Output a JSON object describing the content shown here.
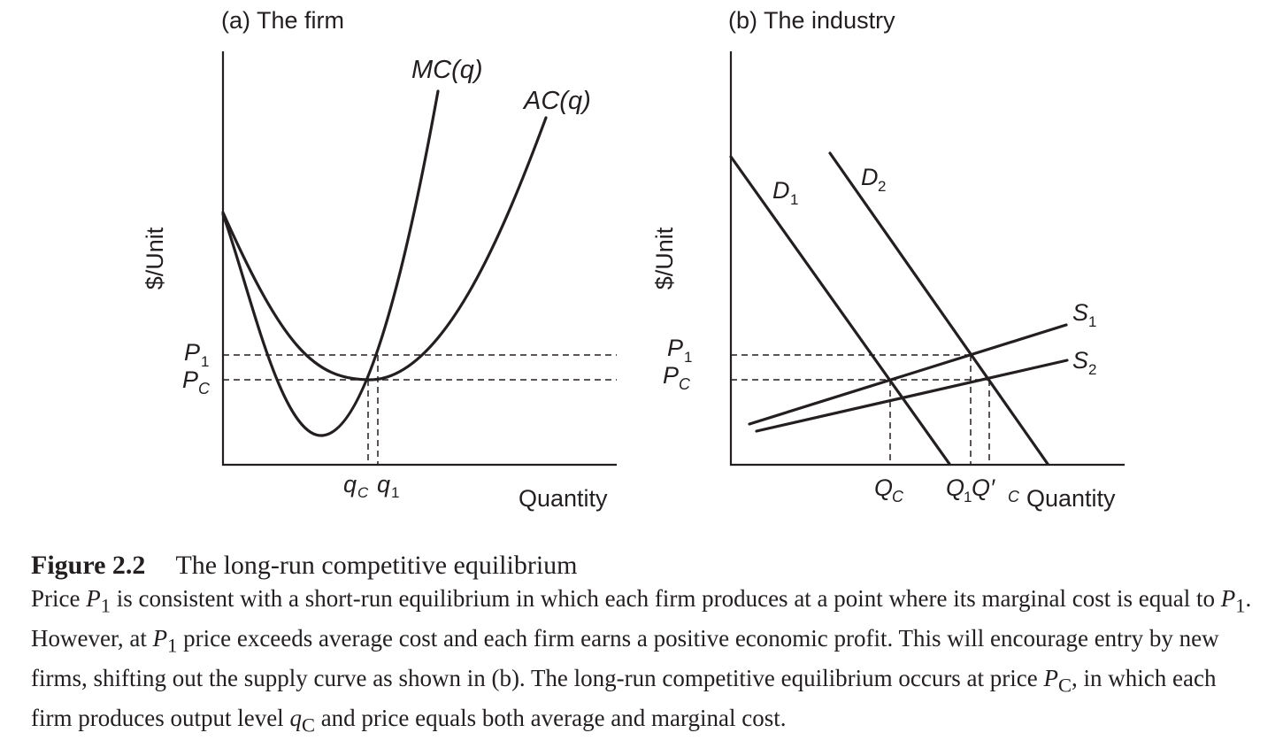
{
  "panel_a": {
    "title": "(a) The firm",
    "y_axis_label": "$/Unit",
    "x_axis_label": "Quantity",
    "mc_label": "MC(q)",
    "ac_label": "AC(q)",
    "p1_label": "P",
    "p1_sub": "1",
    "pc_label": "P",
    "pc_sub": "C",
    "qc_label": "q",
    "qc_sub": "C",
    "q1_label": "q",
    "q1_sub": "1"
  },
  "panel_b": {
    "title": "(b) The industry",
    "y_axis_label": "$/Unit",
    "x_axis_label": "Quantity",
    "d1_label": "D",
    "d1_sub": "1",
    "d2_label": "D",
    "d2_sub": "2",
    "s1_label": "S",
    "s1_sub": "1",
    "s2_label": "S",
    "s2_sub": "2",
    "p1_label": "P",
    "p1_sub": "1",
    "pc_label": "P",
    "pc_sub": "C",
    "qc_label": "Q",
    "qc_sub": "C",
    "q1_label": "Q",
    "q1_sub": "1",
    "qpc_label": "Q′",
    "qpc_sub": "C"
  },
  "caption": {
    "label": "Figure 2.2",
    "title": "The long-run competitive equilibrium",
    "t1": "Price ",
    "p": "P",
    "s1": "1",
    "t2": " is consistent with a short-run equilibrium in which each firm produces at a point where its marginal cost is equal to ",
    "t3": ". However, at ",
    "t4": " price exceeds average cost and each firm earns a positive economic profit. This will encourage entry by new firms, shifting out the supply curve as shown in (b). The long-run competitive equilibrium occurs at price ",
    "sc": "C",
    "t5": ", in which each firm produces output level ",
    "q": "q",
    "t6": " and price equals both average and marginal cost."
  }
}
